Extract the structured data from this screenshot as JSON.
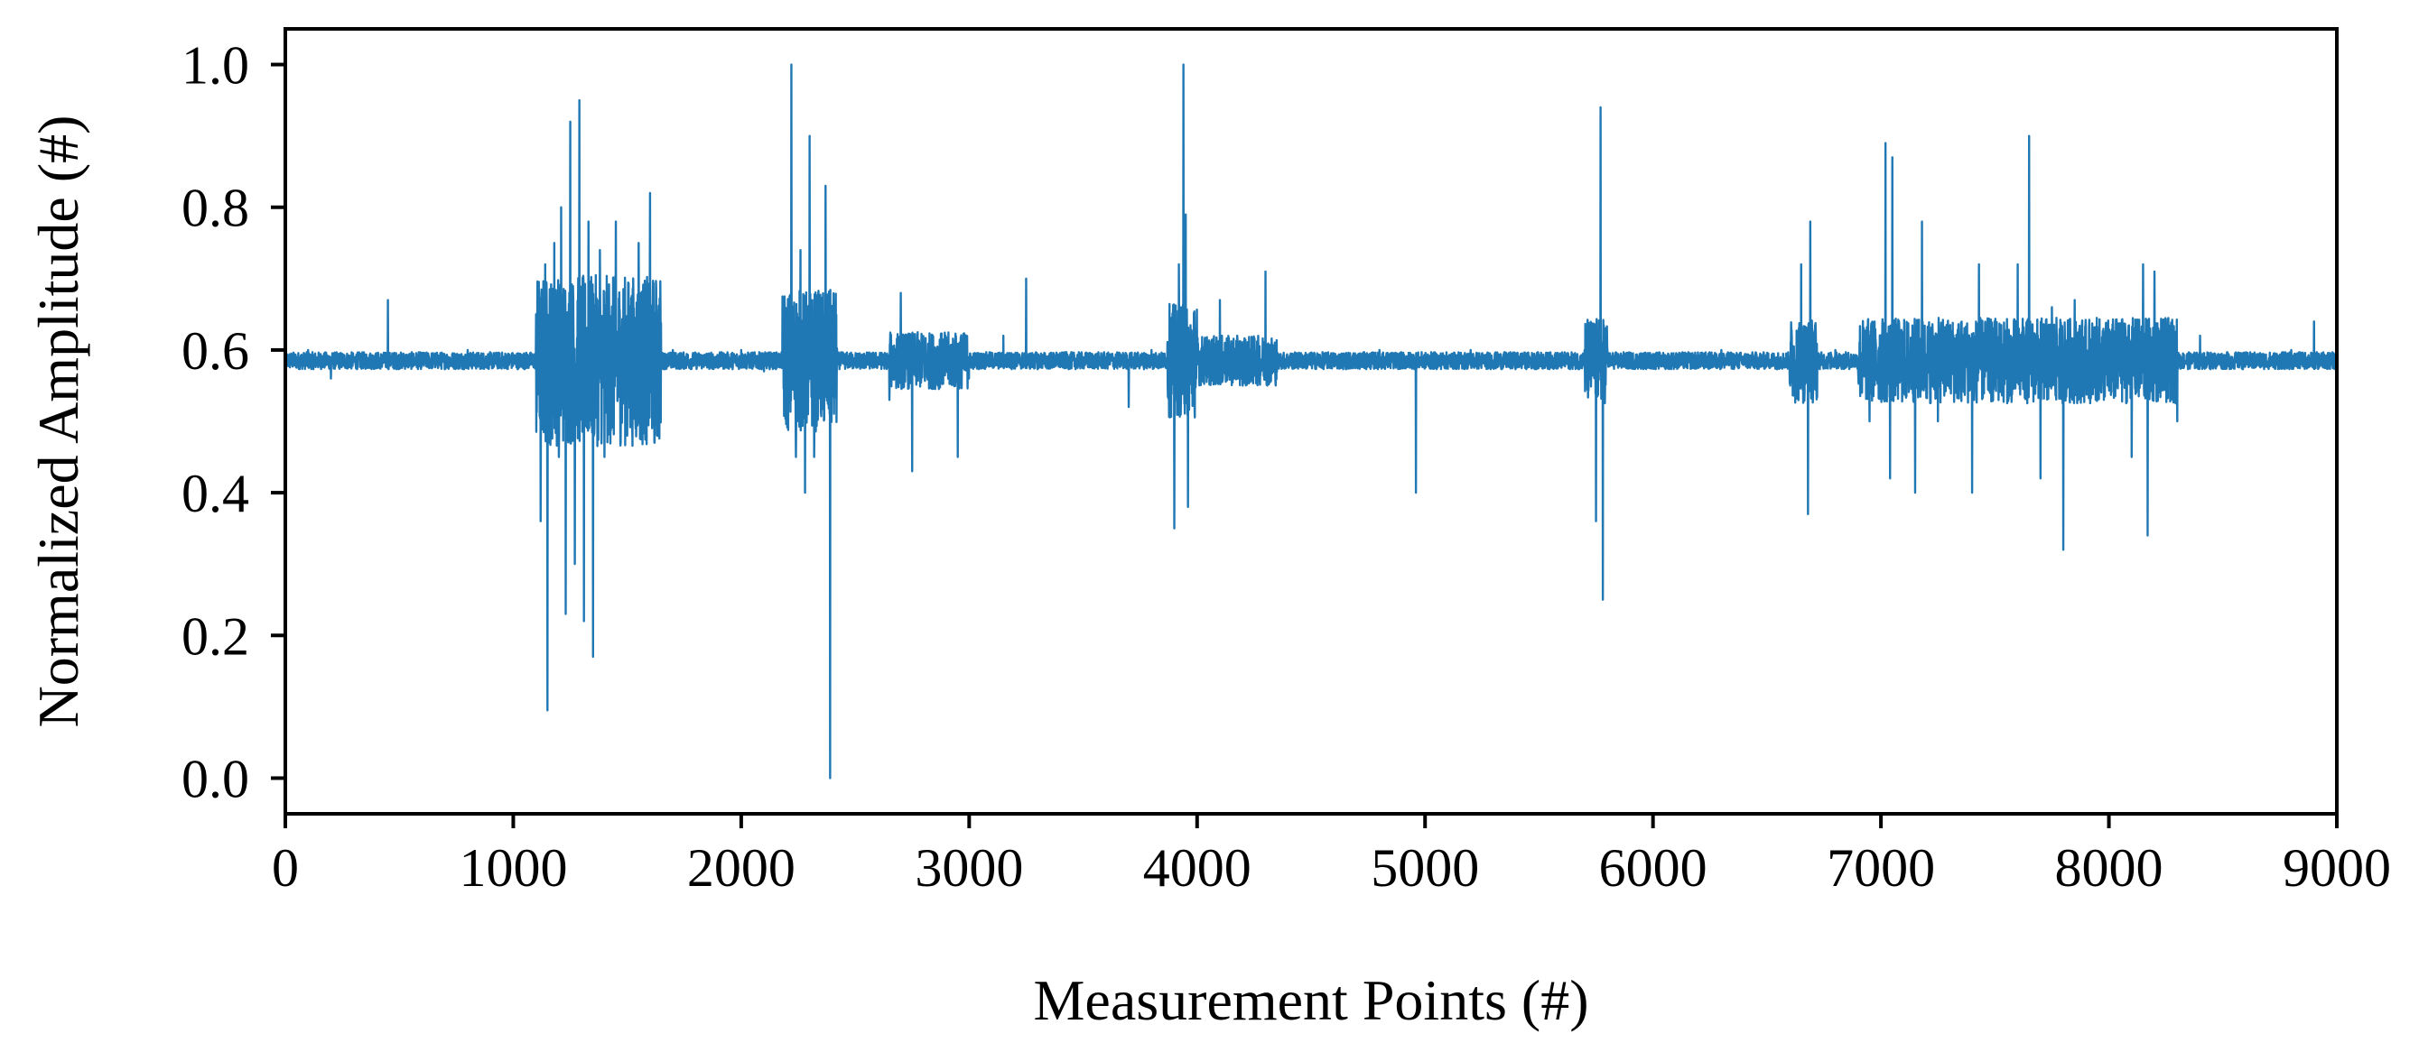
{
  "chart_data": {
    "type": "line",
    "title": "",
    "xlabel": "Measurement Points (#)",
    "ylabel": "Normalized Amplitude (#)",
    "xlim": [
      0,
      9000
    ],
    "ylim": [
      -0.05,
      1.05
    ],
    "xticks": [
      0,
      1000,
      2000,
      3000,
      4000,
      5000,
      6000,
      7000,
      8000,
      9000
    ],
    "xtick_labels": [
      "0",
      "1000",
      "2000",
      "3000",
      "4000",
      "5000",
      "6000",
      "7000",
      "8000",
      "9000"
    ],
    "yticks": [
      0.0,
      0.2,
      0.4,
      0.6,
      0.8,
      1.0
    ],
    "ytick_labels": [
      "0.0",
      "0.2",
      "0.4",
      "0.6",
      "0.8",
      "1.0"
    ],
    "grid": false,
    "legend": "none",
    "line_color": "#1f77b4",
    "baseline": 0.585,
    "sample_count": 9000,
    "series": [
      {
        "values_description_points": [
          [
            0,
            0.58
          ],
          [
            100,
            0.6
          ],
          [
            200,
            0.56
          ],
          [
            300,
            0.59
          ],
          [
            450,
            0.67
          ],
          [
            600,
            0.58
          ],
          [
            800,
            0.6
          ],
          [
            1000,
            0.59
          ],
          [
            1100,
            0.65
          ],
          [
            1120,
            0.36
          ],
          [
            1140,
            0.72
          ],
          [
            1150,
            0.095
          ],
          [
            1180,
            0.75
          ],
          [
            1200,
            0.45
          ],
          [
            1210,
            0.8
          ],
          [
            1230,
            0.23
          ],
          [
            1250,
            0.92
          ],
          [
            1270,
            0.3
          ],
          [
            1290,
            0.95
          ],
          [
            1310,
            0.22
          ],
          [
            1330,
            0.78
          ],
          [
            1350,
            0.17
          ],
          [
            1380,
            0.74
          ],
          [
            1400,
            0.45
          ],
          [
            1450,
            0.78
          ],
          [
            1500,
            0.48
          ],
          [
            1550,
            0.75
          ],
          [
            1600,
            0.82
          ],
          [
            1620,
            0.47
          ],
          [
            1700,
            0.6
          ],
          [
            1800,
            0.58
          ],
          [
            2000,
            0.6
          ],
          [
            2100,
            0.57
          ],
          [
            2200,
            0.62
          ],
          [
            2220,
            1.0
          ],
          [
            2240,
            0.45
          ],
          [
            2260,
            0.74
          ],
          [
            2280,
            0.4
          ],
          [
            2300,
            0.9
          ],
          [
            2320,
            0.45
          ],
          [
            2340,
            0.6
          ],
          [
            2370,
            0.83
          ],
          [
            2390,
            0.0
          ],
          [
            2400,
            0.6
          ],
          [
            2500,
            0.58
          ],
          [
            2600,
            0.59
          ],
          [
            2650,
            0.53
          ],
          [
            2700,
            0.68
          ],
          [
            2750,
            0.43
          ],
          [
            2800,
            0.6
          ],
          [
            2950,
            0.45
          ],
          [
            3000,
            0.59
          ],
          [
            3150,
            0.62
          ],
          [
            3250,
            0.7
          ],
          [
            3400,
            0.58
          ],
          [
            3600,
            0.59
          ],
          [
            3700,
            0.52
          ],
          [
            3800,
            0.6
          ],
          [
            3900,
            0.35
          ],
          [
            3920,
            0.72
          ],
          [
            3940,
            1.0
          ],
          [
            3950,
            0.79
          ],
          [
            3960,
            0.38
          ],
          [
            4000,
            0.6
          ],
          [
            4100,
            0.67
          ],
          [
            4200,
            0.55
          ],
          [
            4300,
            0.71
          ],
          [
            4400,
            0.58
          ],
          [
            4600,
            0.59
          ],
          [
            4800,
            0.6
          ],
          [
            4960,
            0.4
          ],
          [
            5000,
            0.58
          ],
          [
            5200,
            0.6
          ],
          [
            5400,
            0.58
          ],
          [
            5600,
            0.59
          ],
          [
            5700,
            0.6
          ],
          [
            5750,
            0.36
          ],
          [
            5770,
            0.94
          ],
          [
            5780,
            0.25
          ],
          [
            5800,
            0.6
          ],
          [
            5950,
            0.58
          ],
          [
            6100,
            0.59
          ],
          [
            6300,
            0.6
          ],
          [
            6500,
            0.58
          ],
          [
            6650,
            0.72
          ],
          [
            6680,
            0.37
          ],
          [
            6690,
            0.78
          ],
          [
            6800,
            0.6
          ],
          [
            6950,
            0.5
          ],
          [
            7000,
            0.6
          ],
          [
            7020,
            0.89
          ],
          [
            7040,
            0.42
          ],
          [
            7050,
            0.87
          ],
          [
            7100,
            0.55
          ],
          [
            7150,
            0.4
          ],
          [
            7180,
            0.78
          ],
          [
            7250,
            0.5
          ],
          [
            7300,
            0.6
          ],
          [
            7400,
            0.4
          ],
          [
            7430,
            0.72
          ],
          [
            7500,
            0.55
          ],
          [
            7600,
            0.72
          ],
          [
            7650,
            0.9
          ],
          [
            7700,
            0.42
          ],
          [
            7750,
            0.66
          ],
          [
            7800,
            0.32
          ],
          [
            7850,
            0.67
          ],
          [
            7900,
            0.55
          ],
          [
            8000,
            0.6
          ],
          [
            8100,
            0.45
          ],
          [
            8150,
            0.72
          ],
          [
            8170,
            0.34
          ],
          [
            8200,
            0.71
          ],
          [
            8300,
            0.5
          ],
          [
            8400,
            0.62
          ],
          [
            8600,
            0.59
          ],
          [
            8800,
            0.6
          ],
          [
            8900,
            0.64
          ],
          [
            9000,
            0.59
          ]
        ]
      }
    ]
  }
}
